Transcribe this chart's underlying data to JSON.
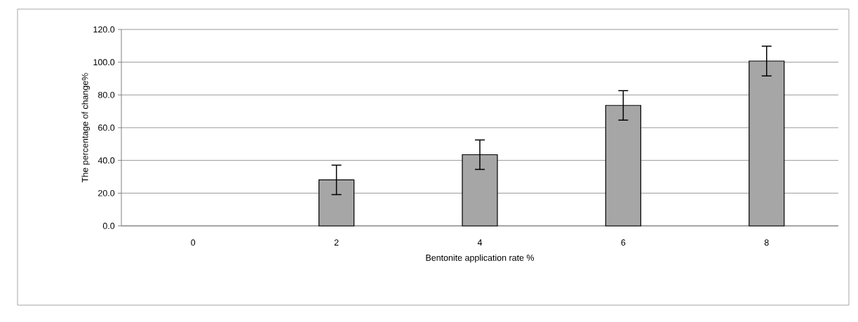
{
  "chart_data": {
    "type": "bar",
    "xlabel": "Bentonite application rate %",
    "ylabel": "The percentage of change%",
    "categories": [
      "0",
      "2",
      "4",
      "6",
      "8"
    ],
    "values": [
      0,
      28.1,
      43.5,
      73.6,
      100.7
    ],
    "errors": [
      null,
      9.0,
      9.0,
      9.0,
      9.1
    ],
    "color": "#a6a6a6",
    "ylim": [
      0,
      120
    ],
    "yticks": [
      {
        "value": 0,
        "label": "0.0"
      },
      {
        "value": 20,
        "label": "20.0"
      },
      {
        "value": 40,
        "label": "40.0"
      },
      {
        "value": 60,
        "label": "60.0"
      },
      {
        "value": 80,
        "label": "80.0"
      },
      {
        "value": 100,
        "label": "100.0"
      },
      {
        "value": 120,
        "label": "120.0"
      }
    ],
    "grid": "y"
  }
}
